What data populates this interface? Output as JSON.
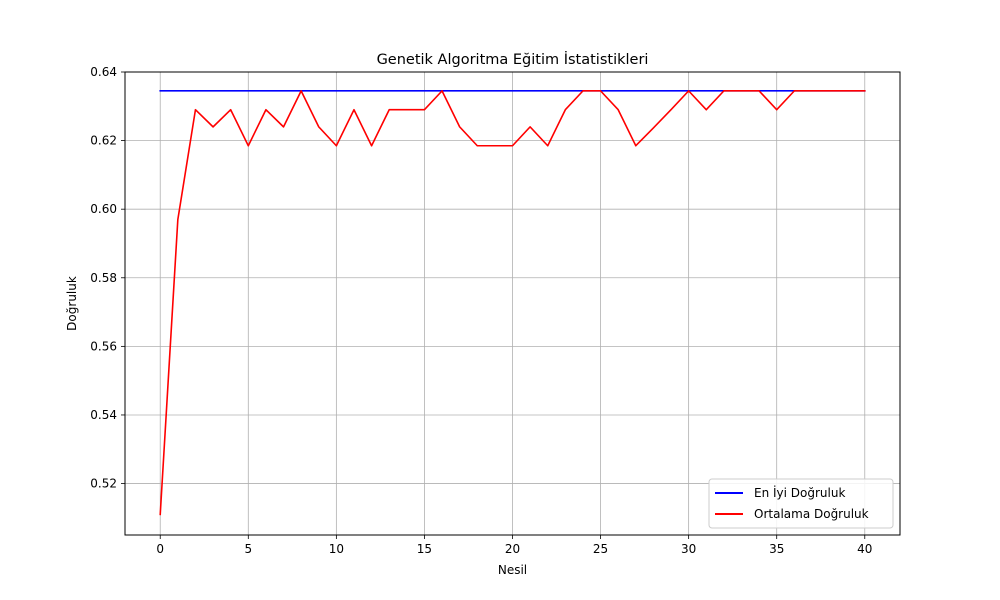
{
  "chart_data": {
    "type": "line",
    "title": "Genetik Algoritma Eğitim İstatistikleri",
    "xlabel": "Nesil",
    "ylabel": "Doğruluk",
    "xlim": [
      -2,
      42
    ],
    "ylim": [
      0.505,
      0.64
    ],
    "xticks": [
      0,
      5,
      10,
      15,
      20,
      25,
      30,
      35,
      40
    ],
    "yticks": [
      0.52,
      0.54,
      0.56,
      0.58,
      0.6,
      0.62,
      0.64
    ],
    "ytick_labels": [
      "0.52",
      "0.54",
      "0.56",
      "0.58",
      "0.60",
      "0.62",
      "0.64"
    ],
    "grid": true,
    "legend_position": "lower-right",
    "x": [
      0,
      1,
      2,
      3,
      4,
      5,
      6,
      7,
      8,
      9,
      10,
      11,
      12,
      13,
      14,
      15,
      16,
      17,
      18,
      19,
      20,
      21,
      22,
      23,
      24,
      25,
      26,
      27,
      28,
      29,
      30,
      31,
      32,
      33,
      34,
      35,
      36,
      37,
      38,
      39,
      40
    ],
    "series": [
      {
        "name": "En İyi Doğruluk",
        "color": "#0000ff",
        "values": [
          0.6345,
          0.6345,
          0.6345,
          0.6345,
          0.6345,
          0.6345,
          0.6345,
          0.6345,
          0.6345,
          0.6345,
          0.6345,
          0.6345,
          0.6345,
          0.6345,
          0.6345,
          0.6345,
          0.6345,
          0.6345,
          0.6345,
          0.6345,
          0.6345,
          0.6345,
          0.6345,
          0.6345,
          0.6345,
          0.6345,
          0.6345,
          0.6345,
          0.6345,
          0.6345,
          0.6345,
          0.6345,
          0.6345,
          0.6345,
          0.6345,
          0.6345,
          0.6345,
          0.6345,
          0.6345,
          0.6345,
          0.6345
        ]
      },
      {
        "name": "Ortalama Doğruluk",
        "color": "#ff0000",
        "values": [
          0.511,
          0.597,
          0.629,
          0.624,
          0.629,
          0.6185,
          0.629,
          0.624,
          0.6345,
          0.624,
          0.6185,
          0.629,
          0.6185,
          0.629,
          0.629,
          0.629,
          0.6345,
          0.624,
          0.6185,
          0.6185,
          0.6185,
          0.624,
          0.6185,
          0.629,
          0.6345,
          0.6345,
          0.629,
          0.6185,
          0.6237,
          0.629,
          0.6345,
          0.629,
          0.6345,
          0.6345,
          0.6345,
          0.629,
          0.6345,
          0.6345,
          0.6345,
          0.6345,
          0.6345
        ]
      }
    ]
  }
}
